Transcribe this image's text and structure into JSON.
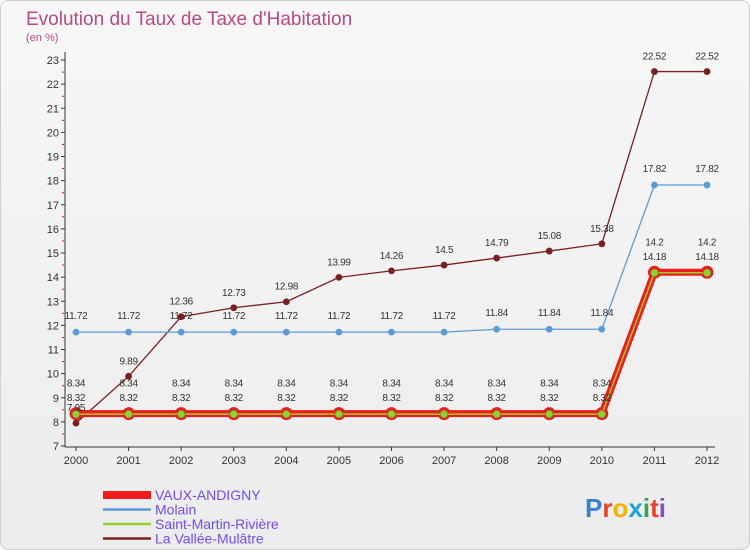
{
  "chart_data": {
    "type": "line",
    "title": "Evolution du Taux de Taxe d'Habitation",
    "subtitle": "(en %)",
    "x": [
      "2000",
      "2001",
      "2002",
      "2003",
      "2004",
      "2005",
      "2006",
      "2007",
      "2008",
      "2009",
      "2010",
      "2011",
      "2012"
    ],
    "ylim": [
      7,
      23
    ],
    "y_ticks": [
      "7",
      "8",
      "9",
      "10",
      "11",
      "12",
      "13",
      "14",
      "15",
      "16",
      "17",
      "18",
      "19",
      "20",
      "21",
      "22",
      "23"
    ],
    "grid": false,
    "legend_position": "bottom-left",
    "series": [
      {
        "name": "VAUX-ANDIGNY",
        "color": "#ee1c1c",
        "values": [
          8.34,
          8.34,
          8.34,
          8.34,
          8.34,
          8.34,
          8.34,
          8.34,
          8.34,
          8.34,
          8.34,
          14.2,
          14.2
        ],
        "labels": [
          "8.34",
          "8.34",
          "8.34",
          "8.34",
          "8.34",
          "8.34",
          "8.34",
          "8.34",
          "8.34",
          "8.34",
          "8.34",
          "14.2",
          "14.2"
        ]
      },
      {
        "name": "Molain",
        "color": "#5b9bd5",
        "values": [
          11.72,
          11.72,
          11.72,
          11.72,
          11.72,
          11.72,
          11.72,
          11.72,
          11.84,
          11.84,
          11.84,
          17.82,
          17.82
        ],
        "labels": [
          "11.72",
          "11.72",
          "11.72",
          "11.72",
          "11.72",
          "11.72",
          "11.72",
          "11.72",
          "11.84",
          "11.84",
          "11.84",
          "17.82",
          "17.82"
        ]
      },
      {
        "name": "Saint-Martin-Rivière",
        "color": "#9acd32",
        "values": [
          8.32,
          8.32,
          8.32,
          8.32,
          8.32,
          8.32,
          8.32,
          8.32,
          8.32,
          8.32,
          8.32,
          14.18,
          14.18
        ],
        "labels": [
          "8.32",
          "8.32",
          "8.32",
          "8.32",
          "8.32",
          "8.32",
          "8.32",
          "8.32",
          "8.32",
          "8.32",
          "8.32",
          "14.18",
          "14.18"
        ]
      },
      {
        "name": "La Vallée-Mulâtre",
        "color": "#7a2020",
        "values": [
          7.95,
          9.89,
          12.36,
          12.73,
          12.98,
          13.99,
          14.26,
          14.5,
          14.79,
          15.08,
          15.38,
          22.52,
          22.52
        ],
        "labels": [
          "7.95",
          "9.89",
          "12.36",
          "12.73",
          "12.98",
          "13.99",
          "14.26",
          "14.5",
          "14.79",
          "15.08",
          "15.38",
          "22.52",
          "22.52"
        ]
      }
    ]
  },
  "branding": {
    "text": "Proxiti",
    "letter_colors": [
      "#3a7fd0",
      "#e8412c",
      "#f2b400",
      "#1aa3d6",
      "#2fa84a",
      "#e8412c",
      "#8a4ec2"
    ]
  }
}
